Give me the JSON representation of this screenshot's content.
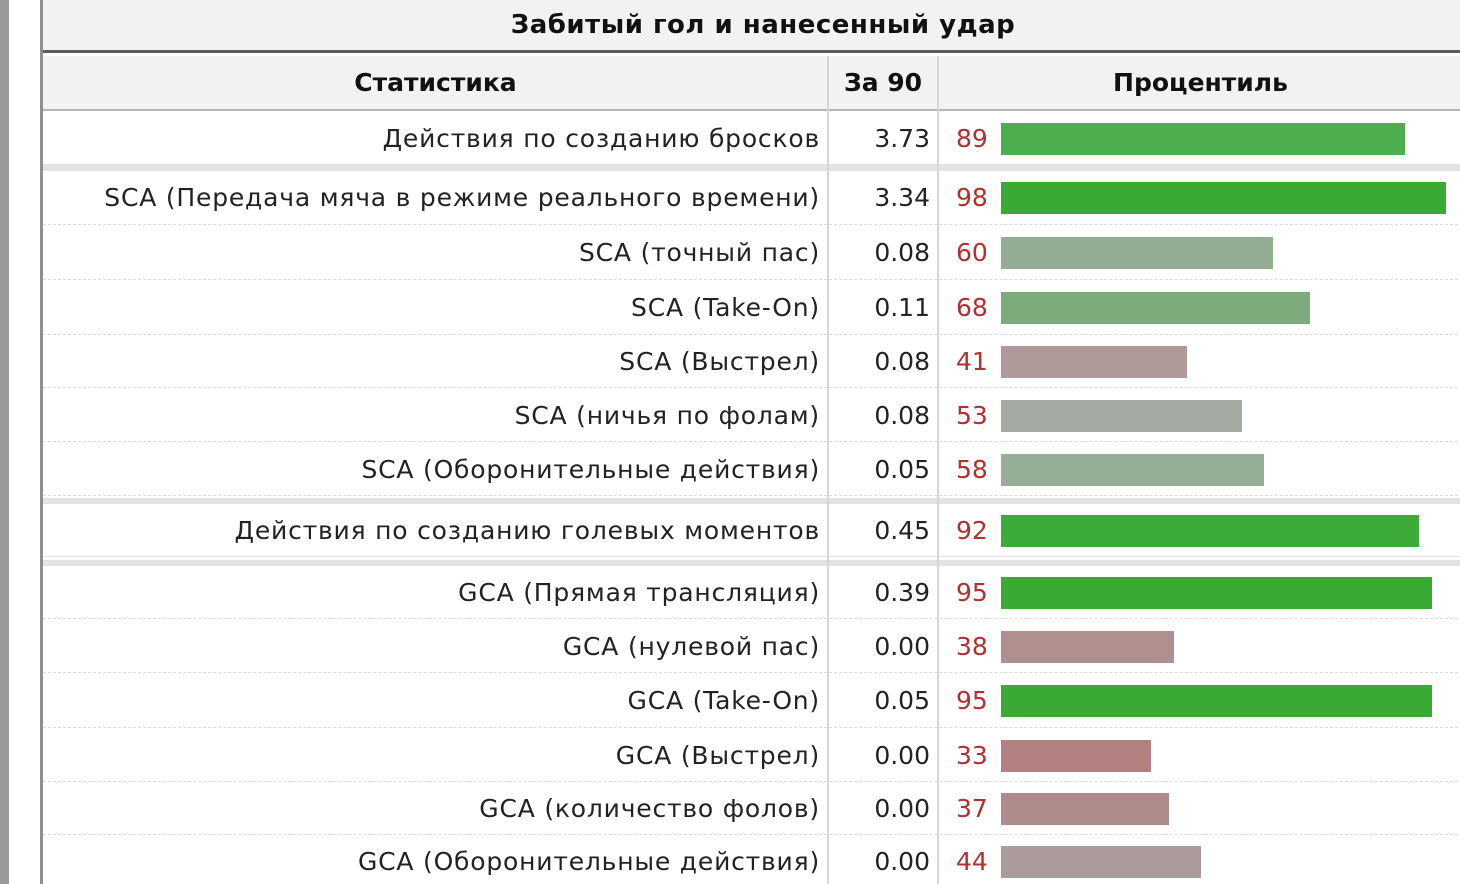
{
  "table": {
    "caption": "Забитый гол и нанесенный удар",
    "headers": {
      "stat": "Статистика",
      "per90": "За 90",
      "percentile": "Процентиль"
    },
    "rows": [
      {
        "label": "Действия по созданию бросков",
        "per90": "3.73",
        "percentile": 89,
        "color": "#4cae4c",
        "summary": true
      },
      {
        "label": "SCA (Передача мяча в режиме реального времени)",
        "per90": "3.34",
        "percentile": 98,
        "color": "#3aaa35"
      },
      {
        "label": "SCA (точный пас)",
        "per90": "0.08",
        "percentile": 60,
        "color": "#93ad93"
      },
      {
        "label": "SCA (Take-On)",
        "per90": "0.11",
        "percentile": 68,
        "color": "#7cac7c"
      },
      {
        "label": "SCA (Выстрел)",
        "per90": "0.08",
        "percentile": 41,
        "color": "#af9999"
      },
      {
        "label": "SCA (ничья по фолам)",
        "per90": "0.08",
        "percentile": 53,
        "color": "#a5aba3"
      },
      {
        "label": "SCA (Оборонительные действия)",
        "per90": "0.05",
        "percentile": 58,
        "color": "#96ad96"
      },
      {
        "label": "Действия по созданию голевых моментов",
        "per90": "0.45",
        "percentile": 92,
        "color": "#3dab39",
        "summary": true
      },
      {
        "label": "GCA (Прямая трансляция)",
        "per90": "0.39",
        "percentile": 95,
        "color": "#3aaa35"
      },
      {
        "label": "GCA (нулевой пас)",
        "per90": "0.00",
        "percentile": 38,
        "color": "#b08f8f"
      },
      {
        "label": "GCA (Take-On)",
        "per90": "0.05",
        "percentile": 95,
        "color": "#3aaa35"
      },
      {
        "label": "GCA (Выстрел)",
        "per90": "0.00",
        "percentile": 33,
        "color": "#b38080"
      },
      {
        "label": "GCA (количество фолов)",
        "per90": "0.00",
        "percentile": 37,
        "color": "#b08b8b"
      },
      {
        "label": "GCA (Оборонительные действия)",
        "per90": "0.00",
        "percentile": 44,
        "color": "#ab9b9d"
      }
    ]
  }
}
